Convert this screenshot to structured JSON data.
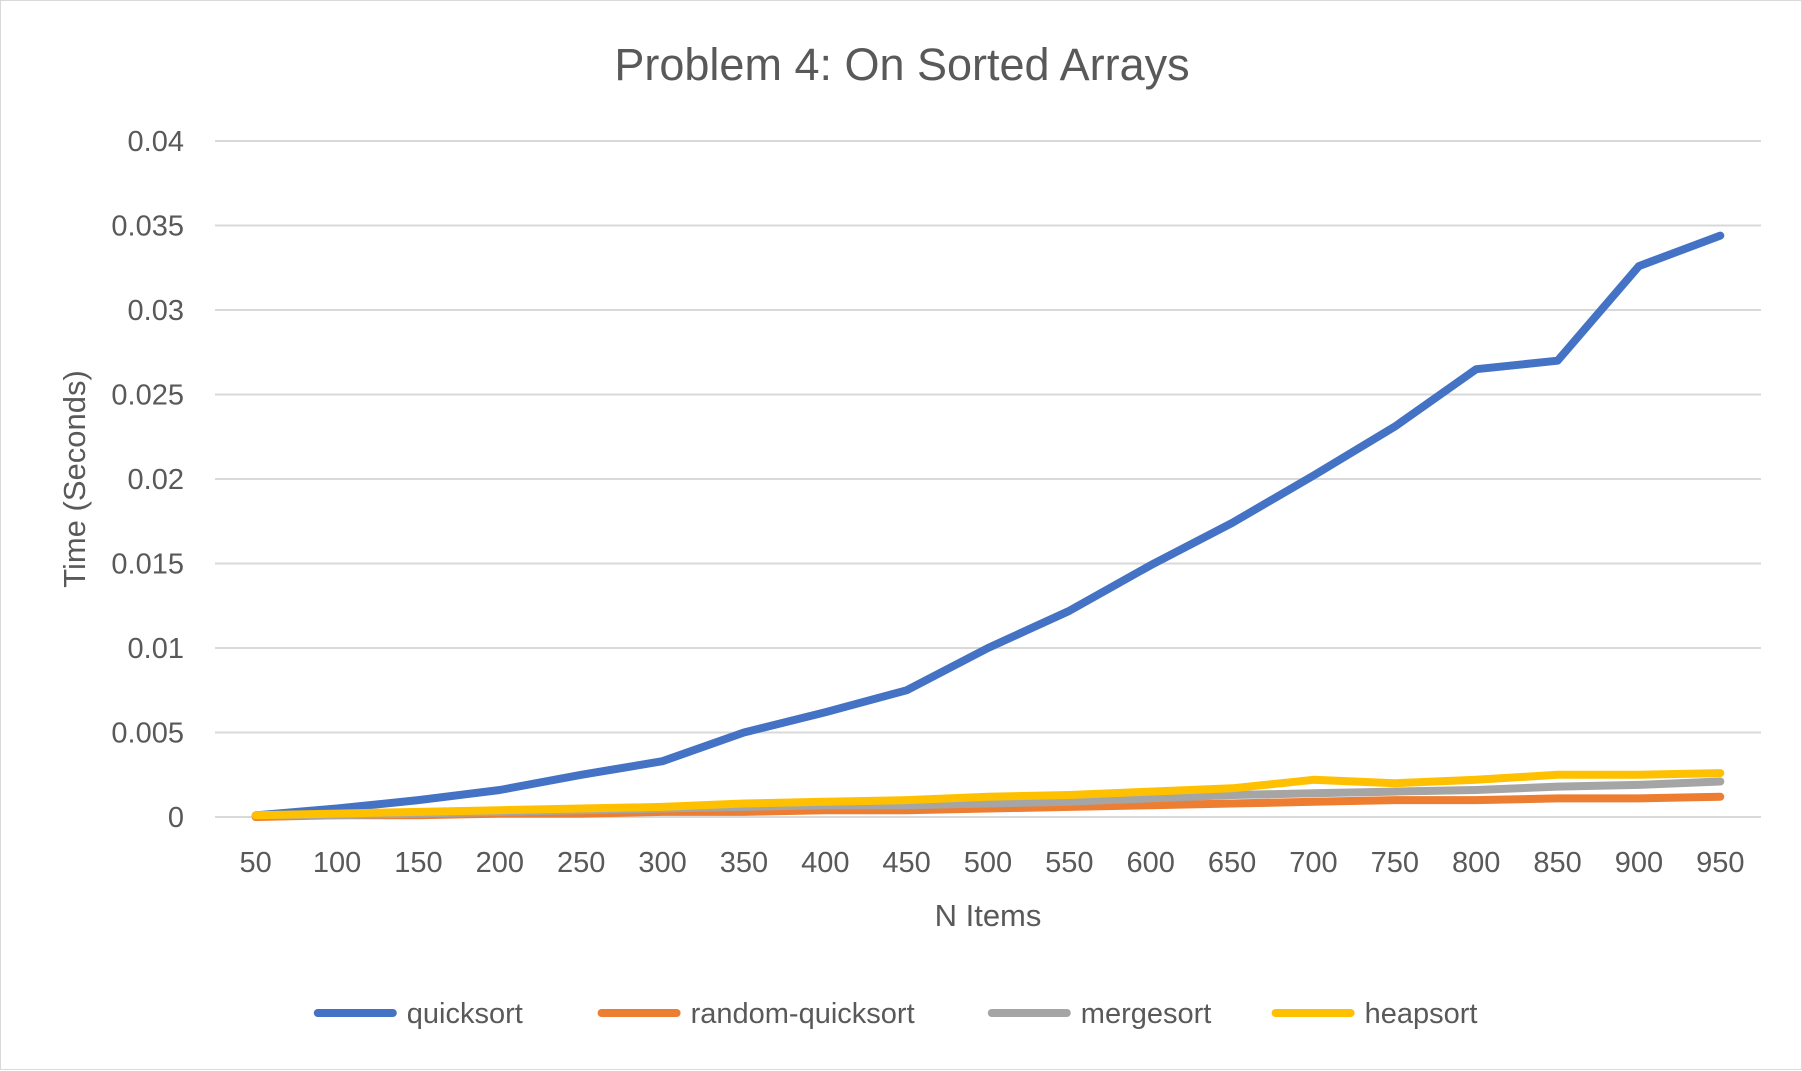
{
  "chart_data": {
    "type": "line",
    "title": "Problem 4: On Sorted Arrays",
    "xlabel": "N Items",
    "ylabel": "Time (Seconds)",
    "ylim": [
      0,
      0.04
    ],
    "yticks": [
      "0",
      "0.005",
      "0.01",
      "0.015",
      "0.02",
      "0.025",
      "0.03",
      "0.035",
      "0.04"
    ],
    "ytick_values": [
      0,
      0.005,
      0.01,
      0.015,
      0.02,
      0.025,
      0.03,
      0.035,
      0.04
    ],
    "grid": true,
    "legend_position": "bottom",
    "categories": [
      "50",
      "100",
      "150",
      "200",
      "250",
      "300",
      "350",
      "400",
      "450",
      "500",
      "550",
      "600",
      "650",
      "700",
      "750",
      "800",
      "850",
      "900",
      "950"
    ],
    "series": [
      {
        "name": "quicksort",
        "color": "#4472C4",
        "values": [
          0.0001,
          0.0005,
          0.001,
          0.0016,
          0.0025,
          0.0033,
          0.005,
          0.0062,
          0.0075,
          0.01,
          0.0122,
          0.0149,
          0.0174,
          0.0202,
          0.0231,
          0.0265,
          0.027,
          0.0326,
          0.0344
        ]
      },
      {
        "name": "random-quicksort",
        "color": "#ED7D31",
        "values": [
          0.0,
          0.0001,
          0.0001,
          0.0002,
          0.0002,
          0.0003,
          0.0003,
          0.0004,
          0.0004,
          0.0005,
          0.0006,
          0.0007,
          0.0008,
          0.0009,
          0.001,
          0.001,
          0.0011,
          0.0011,
          0.0012
        ]
      },
      {
        "name": "mergesort",
        "color": "#A5A5A5",
        "values": [
          0.0001,
          0.0001,
          0.0002,
          0.0003,
          0.0004,
          0.0005,
          0.0006,
          0.0007,
          0.0007,
          0.0008,
          0.0009,
          0.0011,
          0.0013,
          0.0014,
          0.0015,
          0.0016,
          0.0018,
          0.0019,
          0.0021
        ]
      },
      {
        "name": "heapsort",
        "color": "#FFC000",
        "values": [
          0.0001,
          0.0002,
          0.0003,
          0.0004,
          0.0005,
          0.0006,
          0.0008,
          0.0009,
          0.001,
          0.0012,
          0.0013,
          0.0015,
          0.0017,
          0.0022,
          0.002,
          0.0022,
          0.0025,
          0.0025,
          0.0026
        ]
      }
    ]
  }
}
